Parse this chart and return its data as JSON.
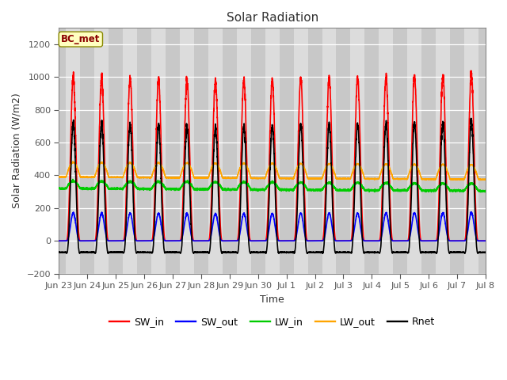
{
  "title": "Solar Radiation",
  "xlabel": "Time",
  "ylabel": "Solar Radiation (W/m2)",
  "ylim": [
    -200,
    1300
  ],
  "yticks": [
    -200,
    0,
    200,
    400,
    600,
    800,
    1000,
    1200
  ],
  "label_text": "BC_met",
  "series": {
    "SW_in": {
      "color": "#FF0000",
      "label": "SW_in"
    },
    "SW_out": {
      "color": "#0000FF",
      "label": "SW_out"
    },
    "LW_in": {
      "color": "#00CC00",
      "label": "LW_in"
    },
    "LW_out": {
      "color": "#FFA500",
      "label": "LW_out"
    },
    "Rnet": {
      "color": "#000000",
      "label": "Rnet"
    }
  },
  "bg_color": "#D8D8D8",
  "fig_bg_color": "#FFFFFF",
  "day_band_color": "#DCDCDC",
  "night_band_color": "#C8C8C8",
  "n_days": 15,
  "SW_in_peak": 1000,
  "SW_out_peak": 175,
  "LW_in_base": 320,
  "LW_in_day_add": 45,
  "LW_out_base": 390,
  "LW_out_day_add": 90,
  "points_per_day": 288,
  "legend_ncol": 5,
  "linewidth": 1.2,
  "tick_labels": [
    "Jun 23",
    "Jun 24",
    "Jun 25",
    "Jun 26",
    "Jun 27",
    "Jun 28",
    "Jun 29",
    "Jun 30",
    "Jul 1",
    "Jul 2",
    "Jul 3",
    "Jul 4",
    "Jul 5",
    "Jul 6",
    "Jul 7",
    "Jul 8"
  ]
}
